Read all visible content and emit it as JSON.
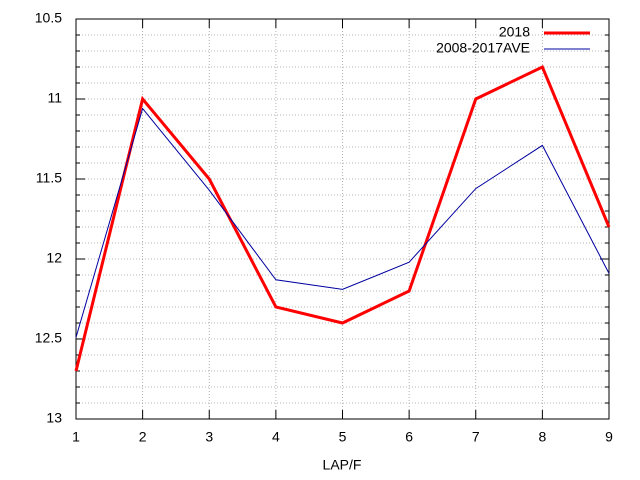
{
  "chart_data": {
    "type": "line",
    "x": [
      1,
      2,
      3,
      4,
      5,
      6,
      7,
      8,
      9
    ],
    "xlabel": "LAP/F",
    "series": [
      {
        "name": "2018",
        "color": "#ff0000",
        "width": 3,
        "values": [
          12.7,
          11.0,
          11.5,
          12.3,
          12.4,
          12.2,
          11.0,
          10.8,
          11.8
        ]
      },
      {
        "name": "2008-2017AVE",
        "color": "#0000a0",
        "width": 1,
        "values": [
          12.49,
          11.06,
          11.57,
          12.13,
          12.19,
          12.02,
          11.56,
          11.29,
          12.09
        ]
      }
    ],
    "xlim": [
      1,
      9
    ],
    "xticks": [
      1,
      2,
      3,
      4,
      5,
      6,
      7,
      8,
      9
    ],
    "ylim": [
      13,
      10.5
    ],
    "yticks": [
      13,
      12.5,
      12,
      11.5,
      11,
      10.5
    ],
    "yminorticks": [
      10.6,
      10.7,
      10.8,
      10.9,
      11.1,
      11.2,
      11.3,
      11.4,
      11.6,
      11.7,
      11.8,
      11.9,
      12.1,
      12.2,
      12.3,
      12.4,
      12.6,
      12.7,
      12.8,
      12.9
    ],
    "grid": true,
    "legend": "top-right"
  }
}
